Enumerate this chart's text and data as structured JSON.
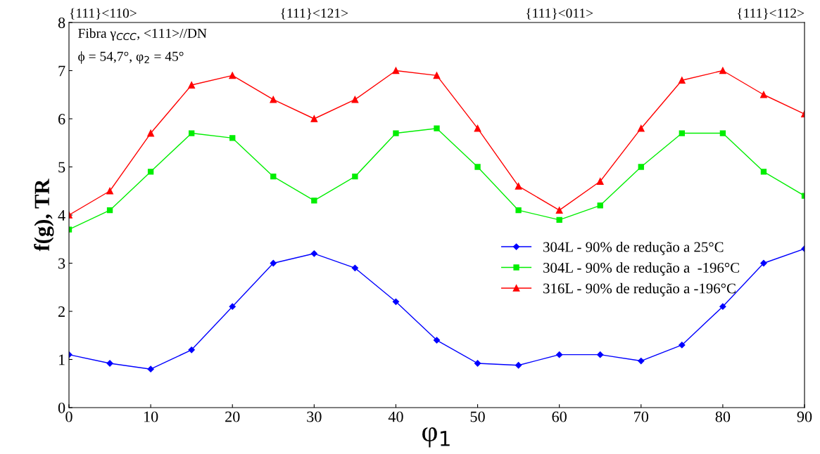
{
  "chart_data": {
    "type": "line",
    "xlabel": "φ$_{1}$",
    "ylabel": "f(g), TR",
    "x": [
      0,
      5,
      10,
      15,
      20,
      25,
      30,
      35,
      40,
      45,
      50,
      55,
      60,
      65,
      70,
      75,
      80,
      85,
      90
    ],
    "xlim": [
      0,
      90
    ],
    "xticks": [
      0,
      10,
      20,
      30,
      40,
      50,
      60,
      70,
      80,
      90
    ],
    "ylim": [
      0,
      8
    ],
    "yticks": [
      0,
      1,
      2,
      3,
      4,
      5,
      6,
      7,
      8
    ],
    "annotations": [
      "Fibra γ$_{CCC}$, <111>//DN",
      "ϕ = 54,7°, φ$_{2}$ = 45°",
      "{111}<110>",
      "{111}<121>",
      "{111}<011>",
      "{111}<112>"
    ],
    "legend": "right",
    "grid": false,
    "series": [
      {
        "name": "304L - 90% de redução a 25°C",
        "color": "#0000ff",
        "marker": "diamond",
        "values": [
          1.1,
          0.92,
          0.8,
          1.2,
          2.1,
          3.0,
          3.2,
          2.9,
          2.2,
          1.4,
          0.92,
          0.88,
          1.1,
          1.1,
          0.97,
          1.3,
          2.1,
          3.0,
          3.3
        ]
      },
      {
        "name": "304L - 90% de redução a  -196°C",
        "color": "#00ee00",
        "marker": "square",
        "values": [
          3.7,
          4.1,
          4.9,
          5.7,
          5.6,
          4.8,
          4.3,
          4.8,
          5.7,
          5.8,
          5.0,
          4.1,
          3.9,
          4.2,
          5.0,
          5.7,
          5.7,
          4.9,
          4.4
        ]
      },
      {
        "name": "316L - 90% de redução a -196°C",
        "color": "#ff0000",
        "marker": "triangle",
        "values": [
          4.0,
          4.5,
          5.7,
          6.7,
          6.9,
          6.4,
          6.0,
          6.4,
          7.0,
          6.9,
          5.8,
          4.6,
          4.1,
          4.7,
          5.8,
          6.8,
          7.0,
          6.5,
          6.1
        ]
      }
    ]
  }
}
